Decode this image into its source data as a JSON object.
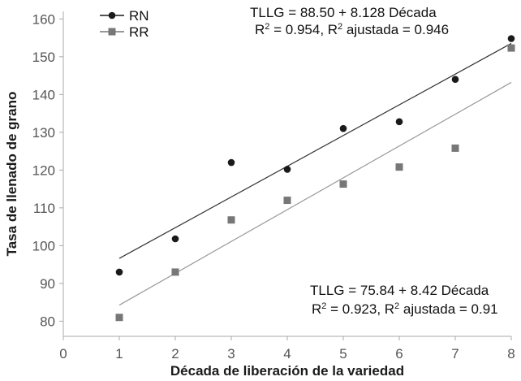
{
  "chart_data": {
    "type": "scatter",
    "xlabel": "Década de liberación de la variedad",
    "ylabel": "Tasa de llenado de grano",
    "xlim": [
      0,
      8
    ],
    "ylim": [
      76,
      162
    ],
    "xticks": [
      "0",
      "1",
      "2",
      "3",
      "4",
      "5",
      "6",
      "7",
      "8"
    ],
    "yticks": [
      "80",
      "90",
      "100",
      "110",
      "120",
      "130",
      "140",
      "150",
      "160"
    ],
    "grid": false,
    "legend_position": "top-left",
    "series": [
      {
        "name": "RN",
        "marker": "circle",
        "color": "#1a1a1a",
        "x": [
          1,
          2,
          3,
          4,
          5,
          6,
          7,
          8
        ],
        "y": [
          93,
          101.8,
          122,
          120.2,
          131,
          132.8,
          144,
          154.8
        ],
        "fit": {
          "intercept": 88.5,
          "slope": 8.128,
          "color": "#333333"
        },
        "equation_lines": [
          "TLLG = 88.50 + 8.128 Década",
          "R² = 0.954, R² ajustada = 0.946"
        ]
      },
      {
        "name": "RR",
        "marker": "square",
        "color": "#777777",
        "x": [
          1,
          2,
          3,
          4,
          5,
          6,
          7,
          8
        ],
        "y": [
          81,
          93,
          106.8,
          112,
          116.3,
          120.8,
          125.8,
          152.3
        ],
        "fit": {
          "intercept": 75.84,
          "slope": 8.42,
          "color": "#999999"
        },
        "equation_lines": [
          "TLLG = 75.84 + 8.42 Década",
          "R² = 0.923, R² ajustada = 0.91"
        ]
      }
    ]
  }
}
